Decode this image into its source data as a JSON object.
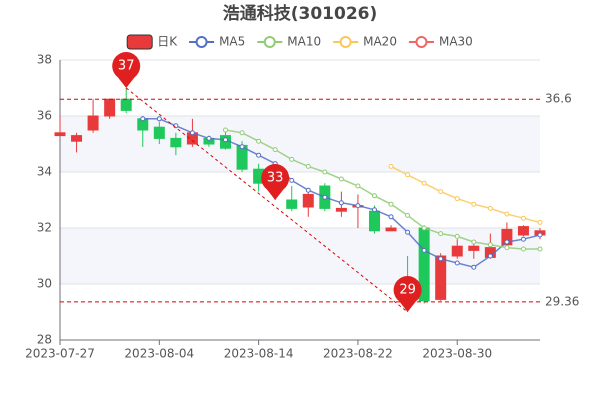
{
  "chart_data": {
    "type": "candlestick",
    "title": "浩通科技(301026)",
    "candle_name": "日K",
    "up_color": "#e83a3a",
    "down_color": "#1ec85a",
    "categories": [
      "2023-07-27",
      null,
      null,
      null,
      null,
      null,
      "2023-08-04",
      null,
      null,
      null,
      null,
      null,
      "2023-08-14",
      null,
      null,
      null,
      null,
      null,
      "2023-08-22",
      null,
      null,
      null,
      null,
      null,
      "2023-08-30",
      null,
      null,
      null,
      null,
      null
    ],
    "open": [
      35.3,
      35.1,
      35.5,
      36.0,
      36.6,
      35.9,
      35.6,
      35.2,
      35.0,
      35.2,
      35.3,
      34.95,
      34.1,
      33.7,
      33.0,
      32.75,
      33.5,
      32.6,
      32.75,
      32.6,
      31.9,
      30.2,
      32.0,
      29.45,
      31.0,
      31.2,
      30.95,
      31.4,
      31.75,
      31.75
    ],
    "close": [
      35.4,
      35.3,
      36.0,
      36.6,
      36.2,
      35.5,
      35.2,
      34.9,
      35.4,
      35.0,
      34.85,
      34.1,
      33.6,
      33.3,
      32.7,
      33.2,
      32.7,
      32.7,
      32.8,
      31.9,
      32.0,
      30.0,
      29.4,
      31.0,
      31.35,
      31.35,
      31.3,
      31.95,
      32.05,
      31.9
    ],
    "high": [
      36.0,
      35.4,
      36.6,
      36.6,
      37.0,
      36.0,
      35.8,
      35.4,
      35.9,
      35.3,
      35.5,
      35.1,
      34.3,
      33.8,
      33.5,
      33.4,
      33.6,
      33.3,
      33.2,
      32.8,
      32.1,
      31.0,
      32.1,
      31.1,
      31.6,
      31.5,
      31.8,
      32.2,
      32.1,
      32.0
    ],
    "low": [
      35.3,
      34.7,
      35.4,
      35.9,
      36.1,
      34.9,
      35.0,
      34.6,
      34.9,
      34.9,
      34.8,
      34.0,
      33.3,
      33.0,
      32.6,
      32.4,
      32.6,
      32.4,
      32.0,
      31.8,
      31.9,
      29.0,
      29.3,
      29.4,
      30.9,
      30.9,
      30.9,
      31.3,
      31.7,
      31.6
    ],
    "ma_series": [
      {
        "name": "MA5",
        "color": "#5470c6",
        "values": [
          null,
          null,
          null,
          null,
          null,
          35.9,
          35.9,
          35.65,
          35.4,
          35.2,
          35.15,
          34.9,
          34.6,
          34.3,
          33.7,
          33.35,
          33.1,
          32.9,
          32.8,
          32.65,
          32.4,
          31.85,
          31.2,
          30.9,
          30.75,
          30.6,
          31.0,
          31.5,
          31.6,
          31.75
        ]
      },
      {
        "name": "MA10",
        "color": "#91cc75",
        "values": [
          null,
          null,
          null,
          null,
          null,
          null,
          null,
          null,
          null,
          null,
          35.5,
          35.4,
          35.1,
          34.8,
          34.45,
          34.2,
          34.0,
          33.75,
          33.5,
          33.15,
          32.85,
          32.45,
          32.0,
          31.8,
          31.7,
          31.5,
          31.4,
          31.3,
          31.25,
          31.25
        ]
      },
      {
        "name": "MA20",
        "color": "#fac858",
        "values": [
          null,
          null,
          null,
          null,
          null,
          null,
          null,
          null,
          null,
          null,
          null,
          null,
          null,
          null,
          null,
          null,
          null,
          null,
          null,
          null,
          34.2,
          33.9,
          33.6,
          33.3,
          33.05,
          32.85,
          32.7,
          32.5,
          32.35,
          32.2
        ]
      },
      {
        "name": "MA30",
        "color": "#ee6666",
        "values": [
          null,
          null,
          null,
          null,
          null,
          null,
          null,
          null,
          null,
          null,
          null,
          null,
          null,
          null,
          null,
          null,
          null,
          null,
          null,
          null,
          null,
          null,
          null,
          null,
          null,
          null,
          null,
          null,
          null,
          null
        ]
      }
    ],
    "ylim": [
      28,
      38
    ],
    "yticks": [
      28,
      30,
      32,
      34,
      36,
      38
    ],
    "grid": true,
    "mark_lines": [
      {
        "value": 36.6,
        "label": "36.6"
      },
      {
        "value": 29.36,
        "label": "29.36"
      }
    ],
    "mark_points": [
      37,
      33,
      29
    ]
  }
}
